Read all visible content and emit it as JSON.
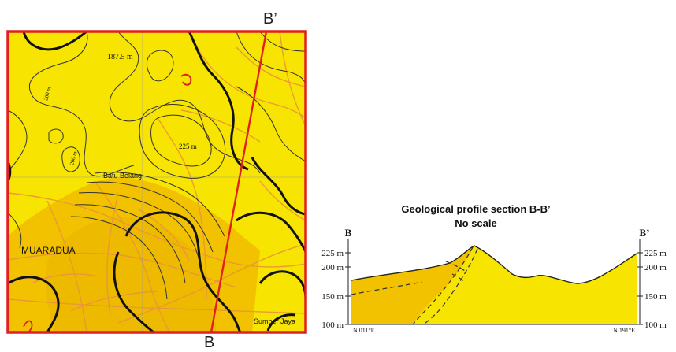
{
  "map": {
    "section_top_label": "B’",
    "section_bottom_label": "B",
    "contour_label_1": "187.5 m",
    "contour_label_2": "225 m",
    "contour_label_3": "200 m",
    "contour_label_4": "200 m",
    "place_batu_belang": "Batu Belang",
    "place_muaradua": "MUARADUA",
    "place_sumber_jaya": "Sumber Jaya"
  },
  "profile": {
    "title": "Geological profile section B-B’",
    "subtitle": "No scale",
    "left_end_label": "B",
    "right_end_label": "B’",
    "left_ticks": [
      "225 m",
      "200 m",
      "150 m",
      "100 m"
    ],
    "right_ticks": [
      "225 m",
      "200 m",
      "150 m",
      "100 m"
    ],
    "left_bearing": "N 011°E",
    "right_bearing": "N 191°E"
  }
}
